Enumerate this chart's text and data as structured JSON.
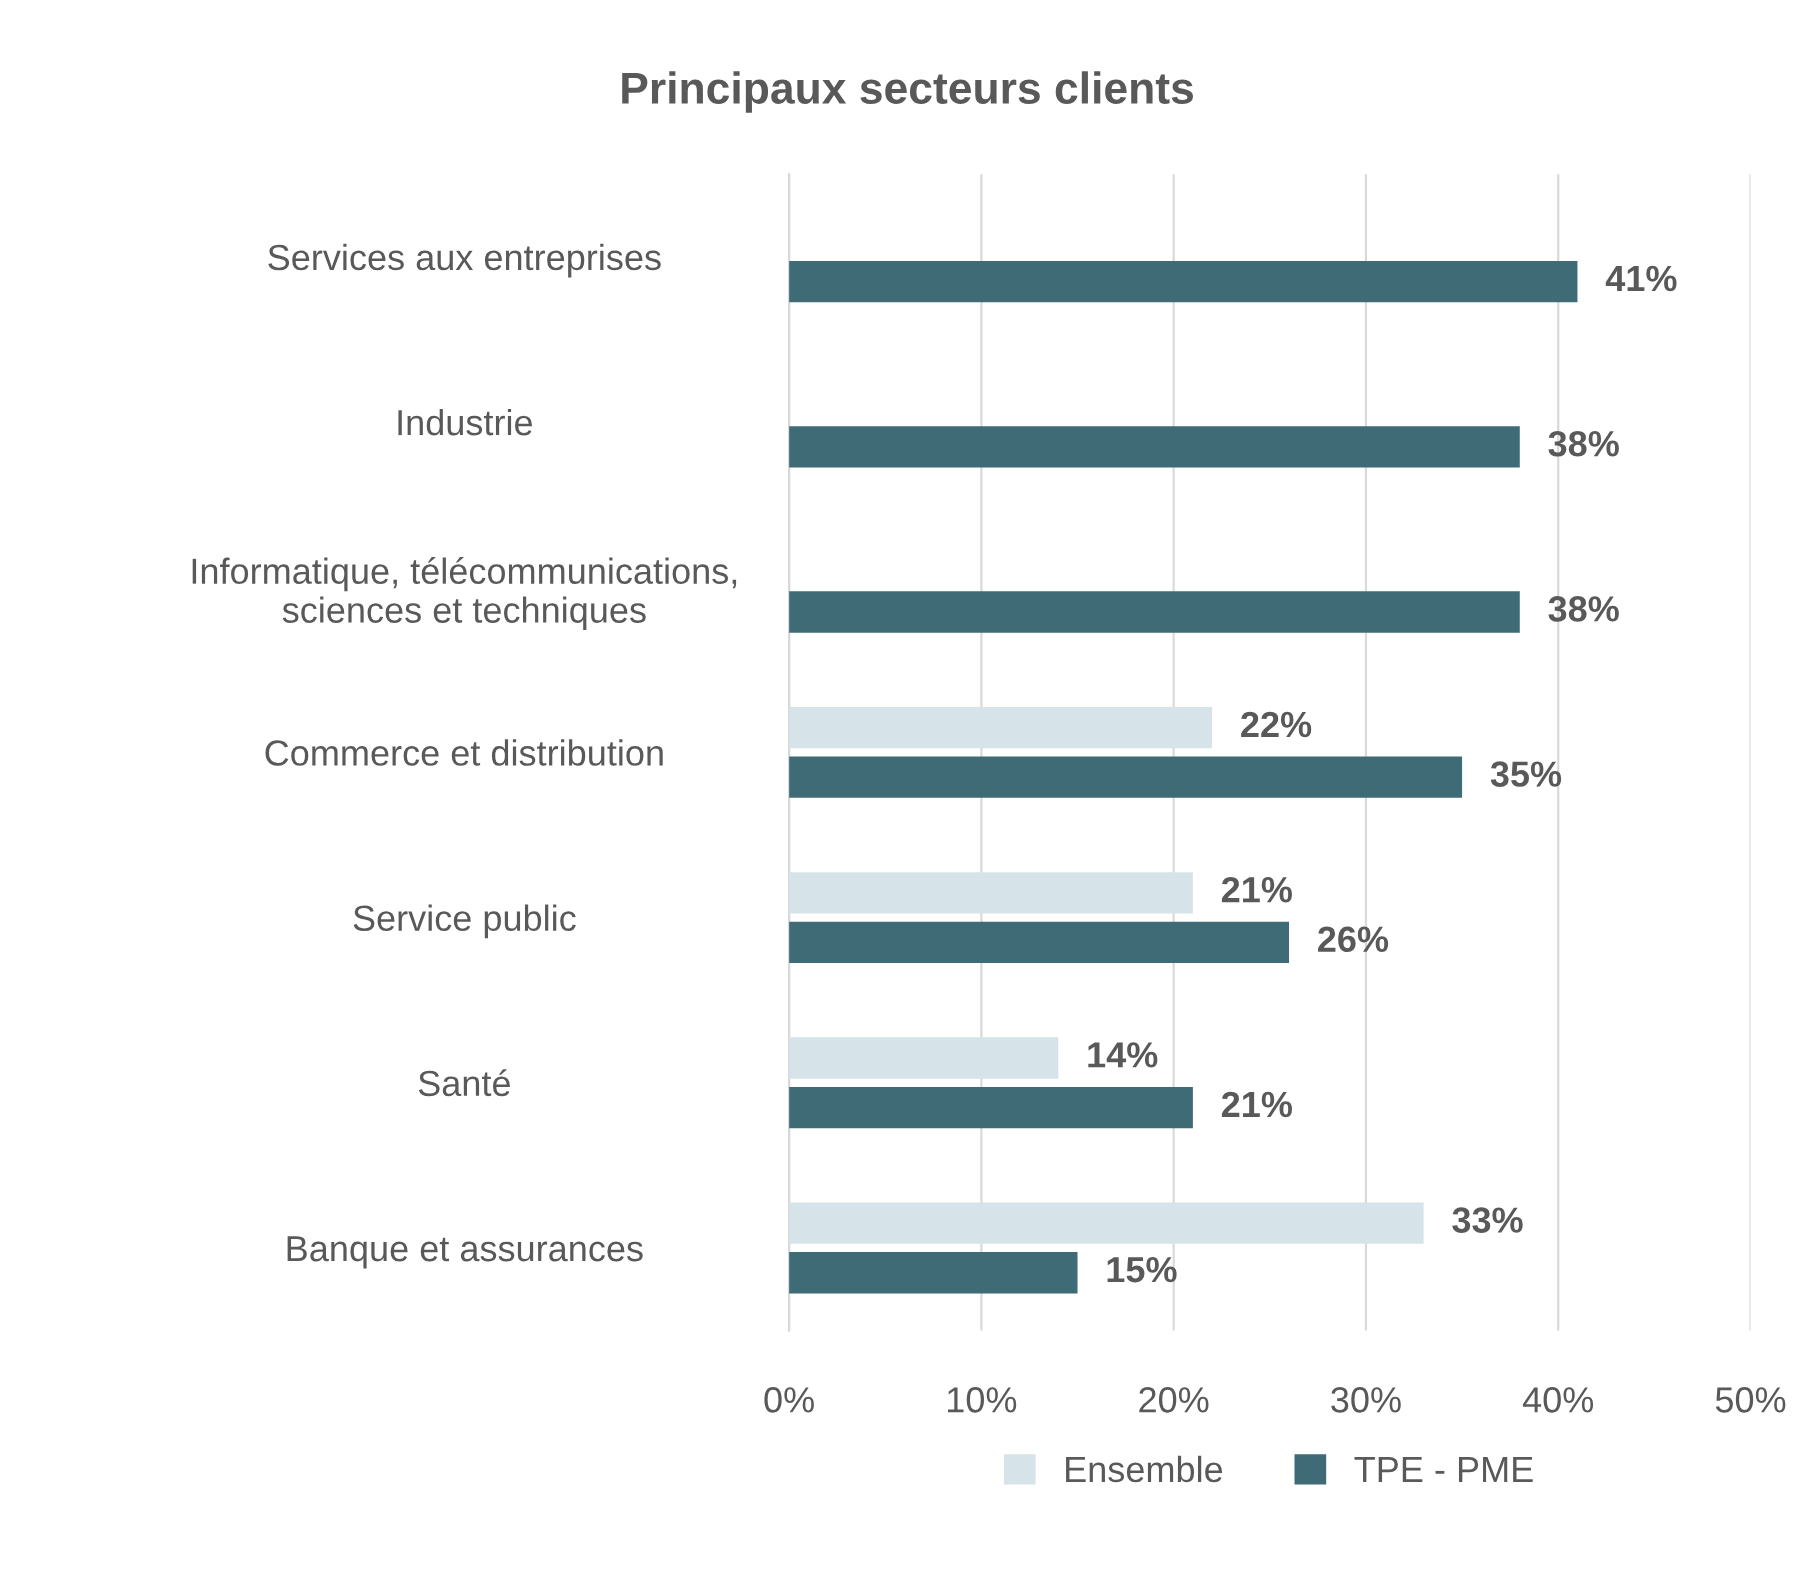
{
  "chart_data": {
    "type": "bar",
    "orientation": "horizontal",
    "title": "Principaux secteurs clients",
    "categories": [
      "Services aux entreprises",
      "Industrie",
      "Informatique, télécommunications,\nsciences et techniques",
      "Commerce et distribution",
      "Service public",
      "Santé",
      "Banque et assurances"
    ],
    "series": [
      {
        "name": "Ensemble",
        "color": "#d6e4ea",
        "values": [
          null,
          null,
          null,
          22,
          21,
          14,
          33
        ],
        "value_labels": [
          null,
          null,
          null,
          "22%",
          "21%",
          "14%",
          "33%"
        ]
      },
      {
        "name": "TPE - PME",
        "color": "#3e6b75",
        "values": [
          41,
          38,
          38,
          35,
          26,
          21,
          15
        ],
        "value_labels": [
          "41%",
          "38%",
          "38%",
          "35%",
          "26%",
          "21%",
          "15%"
        ]
      }
    ],
    "xlim": [
      0,
      50
    ],
    "xticks": [
      {
        "value": 0,
        "label": "0%"
      },
      {
        "value": 10,
        "label": "10%"
      },
      {
        "value": 20,
        "label": "20%"
      },
      {
        "value": 30,
        "label": "30%"
      },
      {
        "value": 40,
        "label": "40%"
      },
      {
        "value": 50,
        "label": "50%"
      }
    ],
    "grid": "x",
    "legend": "bottom"
  }
}
